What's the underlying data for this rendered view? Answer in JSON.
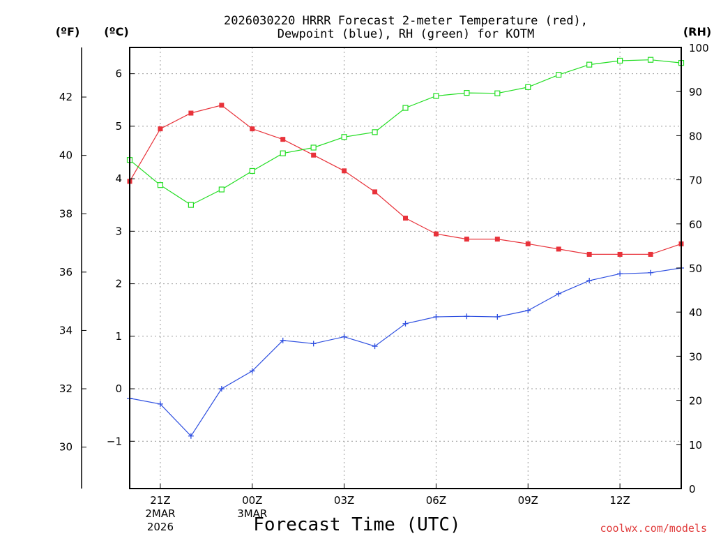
{
  "chart_data": {
    "type": "line",
    "title_line1": "2026030220 HRRR Forecast 2-meter Temperature (red),",
    "title_line2": "Dewpoint (blue), RH (green) for KOTM",
    "xlabel": "Forecast Time (UTC)",
    "credit": "coolwx.com/models",
    "left_f_label": "(ºF)",
    "left_c_label": "(ºC)",
    "right_label": "(RH)",
    "x": [
      0,
      1,
      2,
      3,
      4,
      5,
      6,
      7,
      8,
      9,
      10,
      11,
      12,
      13,
      14,
      15,
      16,
      17,
      18
    ],
    "xlim": [
      0,
      18
    ],
    "x_ticks": [
      {
        "x": 1,
        "label": "21Z",
        "sub1": "2MAR",
        "sub2": "2026"
      },
      {
        "x": 4,
        "label": "00Z",
        "sub1": "3MAR",
        "sub2": ""
      },
      {
        "x": 7,
        "label": "03Z",
        "sub1": "",
        "sub2": ""
      },
      {
        "x": 10,
        "label": "06Z",
        "sub1": "",
        "sub2": ""
      },
      {
        "x": 13,
        "label": "09Z",
        "sub1": "",
        "sub2": ""
      },
      {
        "x": 16,
        "label": "12Z",
        "sub1": "",
        "sub2": ""
      }
    ],
    "ylim_c": [
      -1.9,
      6.5
    ],
    "yticks_c": [
      -1,
      0,
      1,
      2,
      3,
      4,
      5,
      6
    ],
    "yticks_c_labels": [
      "−1",
      "0",
      "1",
      "2",
      "3",
      "4",
      "5",
      "6"
    ],
    "yticks_f": [
      30,
      32,
      34,
      36,
      38,
      40,
      42
    ],
    "ylim_rh": [
      0,
      100
    ],
    "yticks_rh": [
      0,
      10,
      20,
      30,
      40,
      50,
      60,
      70,
      80,
      90,
      100
    ],
    "series": [
      {
        "name": "Temperature",
        "color": "#e8323a",
        "marker": "square-filled",
        "axis": "c",
        "values": [
          3.95,
          4.95,
          5.25,
          5.4,
          4.95,
          4.75,
          4.45,
          4.15,
          3.75,
          3.25,
          2.95,
          2.85,
          2.85,
          2.76,
          2.66,
          2.56,
          2.56,
          2.56,
          2.76
        ]
      },
      {
        "name": "Dewpoint",
        "color": "#2e4fe0",
        "marker": "plus",
        "axis": "c",
        "values": [
          -0.18,
          -0.29,
          -0.9,
          0.0,
          0.34,
          0.92,
          0.86,
          0.99,
          0.81,
          1.24,
          1.37,
          1.38,
          1.37,
          1.49,
          1.81,
          2.06,
          2.19,
          2.21,
          2.3
        ]
      },
      {
        "name": "RH",
        "color": "#22dd22",
        "marker": "square-open",
        "axis": "rh",
        "values": [
          74.5,
          68.8,
          64.3,
          67.8,
          72.0,
          76.0,
          77.3,
          79.7,
          80.8,
          86.3,
          89.0,
          89.7,
          89.6,
          91.0,
          93.8,
          96.1,
          97.0,
          97.2,
          96.5
        ]
      }
    ]
  }
}
